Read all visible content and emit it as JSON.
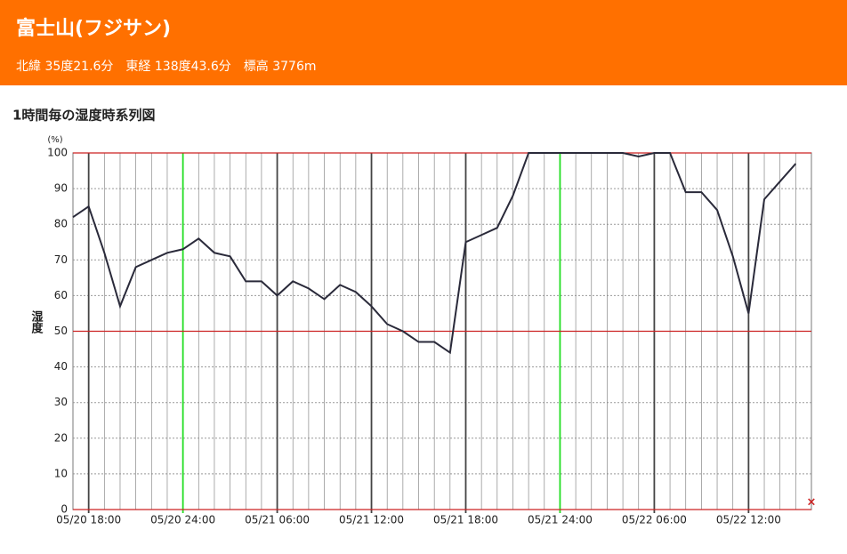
{
  "header": {
    "title": "富士山(フジサン)",
    "subtitle": "北緯 35度21.6分　東経 138度43.6分　標高 3776m"
  },
  "chart_data": {
    "type": "line",
    "title": "1時間毎の湿度時系列図",
    "y_label": "湿度",
    "y_unit": "(%)",
    "categories": [
      null,
      "05/20 18:00",
      null,
      null,
      null,
      null,
      null,
      "05/20 24:00",
      null,
      null,
      null,
      null,
      null,
      "05/21 06:00",
      null,
      null,
      null,
      null,
      null,
      "05/21 12:00",
      null,
      null,
      null,
      null,
      null,
      "05/21 18:00",
      null,
      null,
      null,
      null,
      null,
      "05/21 24:00",
      null,
      null,
      null,
      null,
      null,
      "05/22 06:00",
      null,
      null,
      null,
      null,
      null,
      "05/22 12:00",
      null,
      null,
      null,
      null
    ],
    "series": [
      {
        "name": "湿度",
        "color": "#2a2a3a",
        "values": [
          82,
          85,
          72,
          57,
          68,
          70,
          72,
          73,
          76,
          72,
          71,
          64,
          64,
          60,
          64,
          62,
          59,
          63,
          61,
          57,
          52,
          50,
          47,
          47,
          44,
          75,
          77,
          79,
          88,
          100,
          100,
          100,
          100,
          100,
          100,
          100,
          99,
          100,
          100,
          89,
          89,
          84,
          71,
          55,
          87,
          92,
          97,
          null
        ]
      }
    ],
    "ylim": [
      0,
      100
    ],
    "yticks": [
      0,
      10,
      20,
      30,
      40,
      50,
      60,
      70,
      80,
      90,
      100
    ],
    "ref_lines": [
      0,
      50,
      100
    ],
    "ref_color": "#cc2222",
    "day_line_color": "#22dd22",
    "grid": true
  }
}
